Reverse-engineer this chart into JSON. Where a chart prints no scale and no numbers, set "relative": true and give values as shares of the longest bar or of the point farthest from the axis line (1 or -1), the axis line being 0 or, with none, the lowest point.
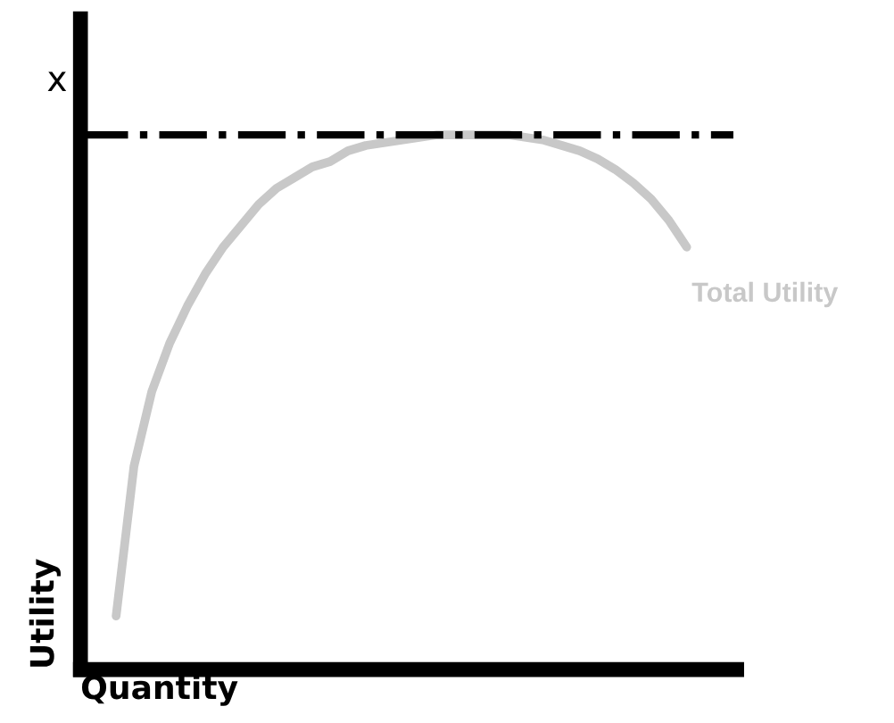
{
  "chart_data": {
    "type": "line",
    "relative": true,
    "xlabel": "Quantity",
    "ylabel": "Utility",
    "categories": [
      null,
      null,
      null,
      null,
      null,
      null,
      null,
      null,
      null,
      null,
      null,
      null,
      null,
      null,
      null,
      null,
      null,
      null,
      null,
      null,
      null,
      null,
      null,
      null,
      null,
      null,
      null,
      null,
      null,
      null,
      null,
      null,
      null
    ],
    "series": [
      {
        "name": "Total Utility",
        "color": "#c8c8c8",
        "values": [
          0.1,
          0.38,
          0.52,
          0.61,
          0.68,
          0.74,
          0.79,
          0.83,
          0.87,
          0.9,
          0.92,
          0.94,
          0.95,
          0.97,
          0.98,
          0.985,
          0.99,
          0.995,
          1.0,
          1.0,
          1.0,
          1.0,
          1.0,
          0.995,
          0.99,
          0.98,
          0.97,
          0.955,
          0.935,
          0.91,
          0.88,
          0.84,
          0.79
        ]
      }
    ],
    "ref_lines": [
      {
        "axis": "y",
        "value": 1.0,
        "label": "x",
        "color": "#000000",
        "line_style": "dashdot"
      }
    ],
    "tick_labels": false,
    "legend": false,
    "marker": "none",
    "line_style": "solid"
  }
}
